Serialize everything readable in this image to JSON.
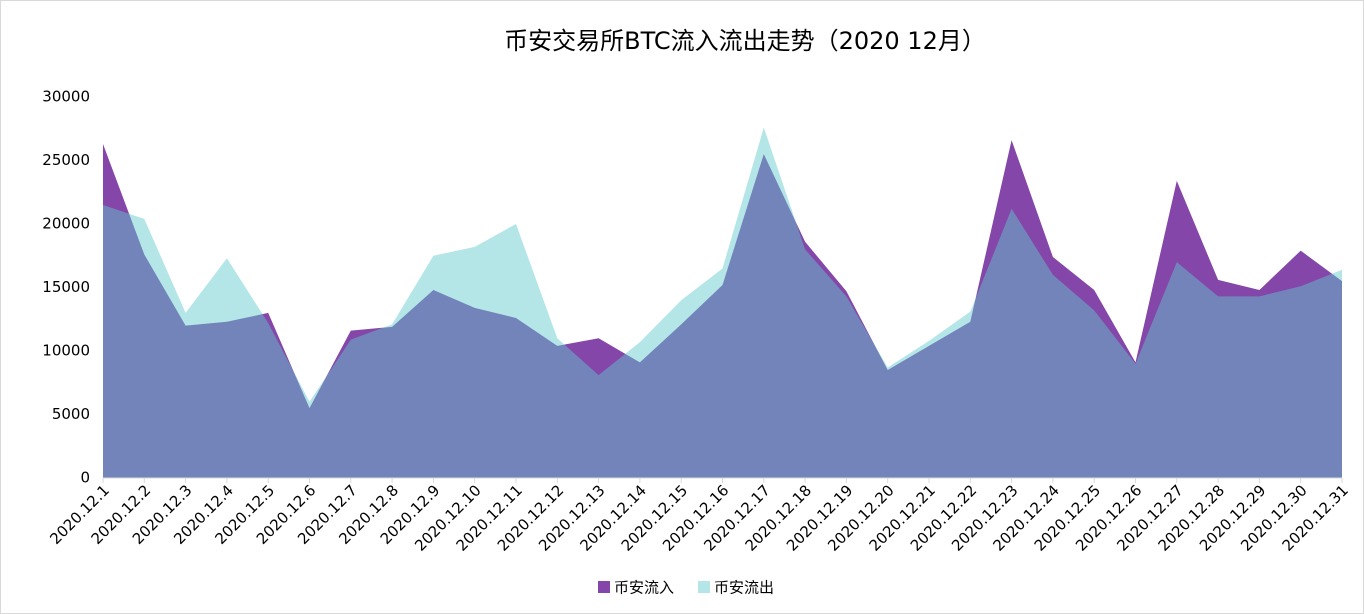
{
  "chart_data": {
    "type": "area",
    "title": "币安交易所BTC流入流出走势（2020 12月）",
    "categories": [
      "2020.12.1",
      "2020.12.2",
      "2020.12.3",
      "2020.12.4",
      "2020.12.5",
      "2020.12.6",
      "2020.12.7",
      "2020.12.8",
      "2020.12.9",
      "2020.12.10",
      "2020.12.11",
      "2020.12.12",
      "2020.12.13",
      "2020.12.14",
      "2020.12.15",
      "2020.12.16",
      "2020.12.17",
      "2020.12.18",
      "2020.12.19",
      "2020.12.20",
      "2020.12.21",
      "2020.12.22",
      "2020.12.23",
      "2020.12.24",
      "2020.12.25",
      "2020.12.26",
      "2020.12.27",
      "2020.12.28",
      "2020.12.29",
      "2020.12.30",
      "2020.12.31"
    ],
    "series": [
      {
        "name": "币安流入",
        "color": "#8446a8",
        "opacity": 1,
        "values": [
          26300,
          17600,
          12000,
          12300,
          13000,
          5500,
          11600,
          11900,
          14800,
          13400,
          12600,
          10400,
          11000,
          9100,
          12100,
          15200,
          25500,
          18600,
          14700,
          8500,
          10400,
          12300,
          26600,
          17400,
          14800,
          9100,
          23400,
          15600,
          14800,
          17900,
          15500
        ]
      },
      {
        "name": "币安流出",
        "color": "#60cace",
        "opacity": 0.47,
        "values": [
          21500,
          20400,
          13000,
          17300,
          12200,
          6000,
          10900,
          12100,
          17500,
          18200,
          20000,
          11000,
          8100,
          10700,
          14000,
          16500,
          27600,
          18000,
          14300,
          8700,
          10800,
          13100,
          21200,
          16000,
          13200,
          9000,
          17000,
          14300,
          14300,
          15100,
          16400
        ]
      }
    ],
    "ylim": [
      0,
      30000
    ],
    "yticks": [
      0,
      5000,
      10000,
      15000,
      20000,
      25000,
      30000
    ]
  }
}
